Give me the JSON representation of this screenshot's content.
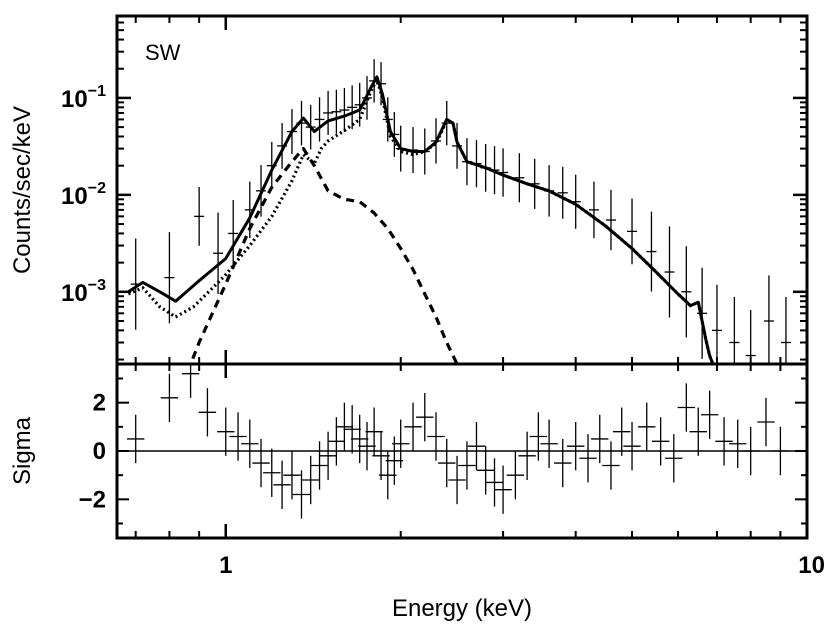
{
  "chart_data": {
    "type": "line",
    "panels": [
      {
        "id": "spectrum",
        "annotation": "SW",
        "ylabel": "Counts/sec/keV",
        "yscale": "log",
        "ylim": [
          0.00018,
          0.7
        ],
        "yticks": [
          {
            "value": 0.1,
            "base": "10",
            "exp": "−1"
          },
          {
            "value": 0.01,
            "base": "10",
            "exp": "−2"
          },
          {
            "value": 0.001,
            "base": "10",
            "exp": "−3"
          }
        ],
        "series": [
          {
            "style": "solid",
            "x": [
              0.68,
              0.72,
              0.77,
              0.82,
              0.9,
              1.0,
              1.1,
              1.2,
              1.3,
              1.36,
              1.42,
              1.5,
              1.6,
              1.7,
              1.78,
              1.82,
              1.86,
              1.92,
              2.0,
              2.1,
              2.2,
              2.3,
              2.4,
              2.46,
              2.5,
              2.6,
              2.8,
              3.0,
              3.3,
              3.6,
              4.0,
              4.5,
              5.0,
              5.5,
              6.0,
              6.3,
              6.5,
              6.6,
              6.7,
              6.8,
              7.0
            ],
            "y": [
              0.001,
              0.00125,
              0.001,
              0.0008,
              0.0013,
              0.0022,
              0.0058,
              0.018,
              0.045,
              0.062,
              0.045,
              0.058,
              0.065,
              0.075,
              0.13,
              0.165,
              0.11,
              0.045,
              0.03,
              0.028,
              0.028,
              0.035,
              0.06,
              0.055,
              0.035,
              0.022,
              0.019,
              0.016,
              0.013,
              0.011,
              0.008,
              0.0048,
              0.0028,
              0.0016,
              0.00095,
              0.00072,
              0.00078,
              0.0005,
              0.00032,
              0.00022,
              0.00014
            ]
          },
          {
            "style": "dotted",
            "x": [
              0.68,
              0.72,
              0.77,
              0.82,
              0.88,
              0.95,
              1.0,
              1.1,
              1.2,
              1.3,
              1.36,
              1.42,
              1.46,
              1.5,
              1.6,
              1.7,
              1.78,
              1.82,
              1.86,
              1.92,
              2.0,
              2.1,
              2.2,
              2.3,
              2.4,
              2.46,
              2.5,
              2.6,
              2.8,
              3.0,
              3.3,
              3.6,
              4.0,
              4.5,
              5.0,
              5.5,
              6.0,
              6.3,
              6.5,
              6.6,
              6.7,
              6.8,
              7.0
            ],
            "y": [
              0.00095,
              0.0011,
              0.0007,
              0.00055,
              0.0007,
              0.0011,
              0.0015,
              0.003,
              0.006,
              0.014,
              0.026,
              0.021,
              0.03,
              0.036,
              0.046,
              0.06,
              0.12,
              0.155,
              0.1,
              0.04,
              0.028,
              0.026,
              0.028,
              0.034,
              0.058,
              0.055,
              0.035,
              0.022,
              0.019,
              0.016,
              0.013,
              0.011,
              0.008,
              0.0048,
              0.0028,
              0.0016,
              0.00095,
              0.00072,
              0.00078,
              0.0005,
              0.00032,
              0.00022,
              0.00014
            ]
          },
          {
            "style": "dashed",
            "x": [
              0.86,
              0.9,
              1.0,
              1.1,
              1.2,
              1.3,
              1.36,
              1.42,
              1.5,
              1.6,
              1.7,
              1.8,
              1.9,
              2.0,
              2.1,
              2.2,
              2.3,
              2.4,
              2.5
            ],
            "y": [
              0.00015,
              0.0003,
              0.0012,
              0.0045,
              0.012,
              0.022,
              0.03,
              0.02,
              0.011,
              0.009,
              0.0085,
              0.0065,
              0.0045,
              0.0028,
              0.0017,
              0.00095,
              0.00055,
              0.0003,
              0.00018
            ]
          }
        ],
        "data_points": {
          "x": [
            0.7,
            0.8,
            0.9,
            0.97,
            1.03,
            1.1,
            1.15,
            1.2,
            1.25,
            1.3,
            1.35,
            1.4,
            1.45,
            1.5,
            1.55,
            1.6,
            1.65,
            1.7,
            1.75,
            1.8,
            1.85,
            1.9,
            1.95,
            2.0,
            2.1,
            2.2,
            2.3,
            2.4,
            2.5,
            2.6,
            2.7,
            2.8,
            2.9,
            3.0,
            3.2,
            3.4,
            3.6,
            3.8,
            4.0,
            4.3,
            4.6,
            5.0,
            5.4,
            5.8,
            6.2,
            6.6,
            7.0,
            7.5,
            8.0,
            8.6,
            9.2
          ],
          "y": [
            0.0012,
            0.0014,
            0.006,
            0.0025,
            0.004,
            0.007,
            0.011,
            0.02,
            0.032,
            0.045,
            0.055,
            0.05,
            0.06,
            0.07,
            0.072,
            0.075,
            0.08,
            0.085,
            0.1,
            0.15,
            0.14,
            0.06,
            0.042,
            0.03,
            0.029,
            0.028,
            0.036,
            0.055,
            0.032,
            0.022,
            0.021,
            0.019,
            0.018,
            0.017,
            0.015,
            0.013,
            0.011,
            0.0105,
            0.0085,
            0.007,
            0.0055,
            0.0042,
            0.0026,
            0.0016,
            0.001,
            0.0006,
            0.0004,
            0.0003,
            0.00022,
            0.0005,
            0.0003
          ]
        }
      },
      {
        "id": "residuals",
        "ylabel": "Sigma",
        "ylim": [
          -3.6,
          3.6
        ],
        "yticks": [
          {
            "value": 2,
            "label": "2"
          },
          {
            "value": 0,
            "label": "0"
          },
          {
            "value": -2,
            "label": "−2"
          }
        ],
        "zero_line": true,
        "residuals": {
          "x": [
            0.7,
            0.8,
            0.87,
            0.93,
            1.0,
            1.05,
            1.1,
            1.15,
            1.2,
            1.25,
            1.3,
            1.35,
            1.4,
            1.45,
            1.5,
            1.55,
            1.6,
            1.65,
            1.7,
            1.75,
            1.8,
            1.85,
            1.9,
            1.95,
            2.0,
            2.1,
            2.2,
            2.3,
            2.4,
            2.5,
            2.6,
            2.7,
            2.8,
            2.9,
            3.0,
            3.15,
            3.3,
            3.45,
            3.6,
            3.8,
            4.0,
            4.2,
            4.4,
            4.6,
            4.8,
            5.0,
            5.3,
            5.6,
            5.9,
            6.2,
            6.5,
            6.8,
            7.2,
            7.6,
            8.0,
            8.5,
            9.0
          ],
          "y": [
            0.5,
            2.2,
            3.2,
            1.6,
            0.8,
            0.6,
            0.3,
            -0.5,
            -0.9,
            -1.4,
            -1.0,
            -1.8,
            -1.2,
            -0.6,
            -0.2,
            0.4,
            1.0,
            0.9,
            0.5,
            0.2,
            0.8,
            -0.2,
            -1.0,
            -0.4,
            0.3,
            1.0,
            1.4,
            0.6,
            -0.5,
            -1.2,
            -0.6,
            0.2,
            -0.8,
            -1.3,
            -1.6,
            -1.0,
            -0.2,
            0.6,
            0.3,
            -0.5,
            0.2,
            -0.3,
            0.5,
            -0.6,
            0.8,
            0.2,
            1.0,
            0.4,
            -0.3,
            1.8,
            0.8,
            1.5,
            0.4,
            0.3,
            0.0,
            1.2,
            0.0
          ]
        }
      }
    ],
    "xlabel": "Energy (keV)",
    "xscale": "log",
    "xlim": [
      0.65,
      10
    ],
    "xticks": [
      {
        "value": 1,
        "label": "1"
      },
      {
        "value": 10,
        "label": "10"
      }
    ],
    "grid": false,
    "legend": "none"
  }
}
